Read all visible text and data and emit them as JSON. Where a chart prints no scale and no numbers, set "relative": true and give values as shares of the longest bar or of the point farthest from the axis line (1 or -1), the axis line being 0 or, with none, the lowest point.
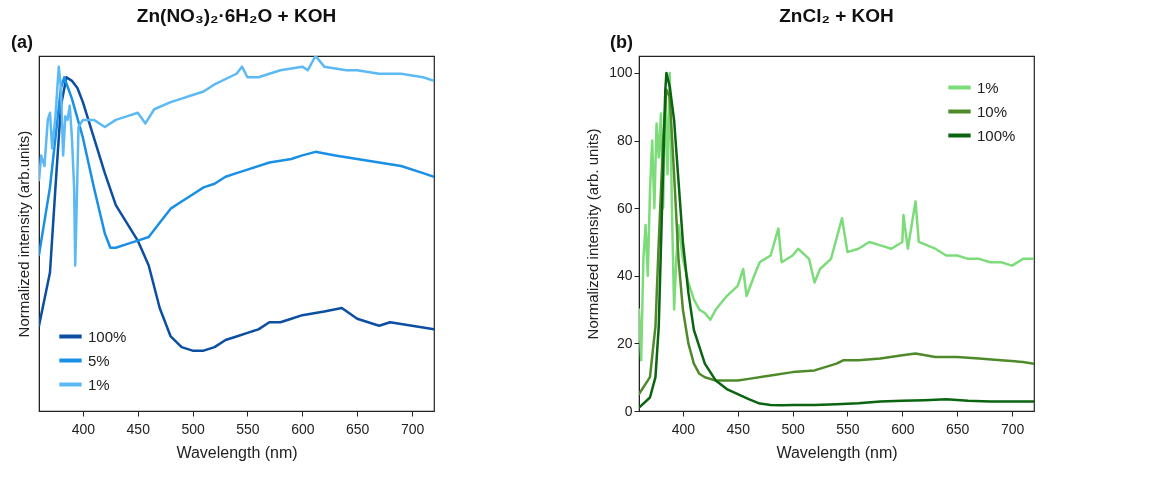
{
  "chart_data": [
    {
      "type": "line",
      "title": "Zn(NO₃)₂·6H₂O + KOH",
      "xlabel": "Wavelength (nm)",
      "ylabel": "Normalized intensity (arb.units)",
      "annotations": [
        "(a)"
      ],
      "relative": true,
      "xlim": [
        360,
        720
      ],
      "xticks": [
        400,
        450,
        500,
        550,
        600,
        650,
        700
      ],
      "grid": false,
      "legend": "bottom left",
      "line_style": "solid",
      "marker": "none",
      "series": [
        {
          "name": "100%",
          "color": "#0b4ea2",
          "x": [
            360,
            370,
            375,
            380,
            385,
            390,
            395,
            400,
            410,
            420,
            430,
            440,
            450,
            460,
            470,
            480,
            490,
            500,
            510,
            520,
            530,
            540,
            550,
            560,
            570,
            580,
            590,
            600,
            620,
            636,
            650,
            660,
            670,
            680,
            700,
            720
          ],
          "values": [
            0.24,
            0.39,
            0.63,
            0.86,
            0.94,
            0.93,
            0.91,
            0.87,
            0.77,
            0.67,
            0.58,
            0.53,
            0.48,
            0.41,
            0.29,
            0.21,
            0.18,
            0.17,
            0.17,
            0.18,
            0.2,
            0.21,
            0.22,
            0.23,
            0.25,
            0.25,
            0.26,
            0.27,
            0.28,
            0.29,
            0.26,
            0.25,
            0.24,
            0.25,
            0.24,
            0.23
          ]
        },
        {
          "name": "5%",
          "color": "#1a8fe6",
          "x": [
            360,
            370,
            375,
            380,
            383,
            390,
            400,
            410,
            420,
            425,
            430,
            440,
            450,
            460,
            470,
            480,
            490,
            500,
            510,
            520,
            530,
            540,
            550,
            570,
            590,
            600,
            612,
            630,
            650,
            670,
            690,
            710,
            720
          ],
          "values": [
            0.44,
            0.63,
            0.77,
            0.91,
            0.94,
            0.88,
            0.77,
            0.63,
            0.5,
            0.46,
            0.46,
            0.47,
            0.48,
            0.49,
            0.53,
            0.57,
            0.59,
            0.61,
            0.63,
            0.64,
            0.66,
            0.67,
            0.68,
            0.7,
            0.71,
            0.72,
            0.73,
            0.72,
            0.71,
            0.7,
            0.69,
            0.67,
            0.66
          ]
        },
        {
          "name": "1%",
          "color": "#5cb9f4",
          "x": [
            360,
            362,
            365,
            368,
            370,
            372,
            375,
            378,
            380,
            382,
            384,
            386,
            388,
            390,
            392,
            393,
            394,
            396,
            400,
            410,
            420,
            430,
            440,
            450,
            457,
            465,
            480,
            490,
            500,
            510,
            520,
            540,
            545,
            550,
            560,
            580,
            600,
            605,
            612,
            620,
            640,
            650,
            670,
            690,
            710,
            720
          ],
          "values": [
            0.65,
            0.72,
            0.69,
            0.82,
            0.84,
            0.74,
            0.83,
            0.97,
            0.91,
            0.72,
            0.83,
            0.82,
            0.86,
            0.77,
            0.63,
            0.41,
            0.53,
            0.8,
            0.82,
            0.82,
            0.8,
            0.82,
            0.83,
            0.84,
            0.81,
            0.85,
            0.87,
            0.88,
            0.89,
            0.9,
            0.92,
            0.95,
            0.97,
            0.94,
            0.94,
            0.96,
            0.97,
            0.96,
            1,
            0.97,
            0.96,
            0.96,
            0.95,
            0.95,
            0.94,
            0.93
          ]
        }
      ]
    },
    {
      "type": "line",
      "title": "ZnCl₂ + KOH",
      "xlabel": "Wavelength (nm)",
      "ylabel": "Normalized intensity (arb. units)",
      "annotations": [
        "(b)"
      ],
      "xlim": [
        360,
        720
      ],
      "xticks": [
        400,
        450,
        500,
        550,
        600,
        650,
        700
      ],
      "ylim": [
        0,
        105
      ],
      "yticks": [
        0,
        20,
        40,
        60,
        80,
        100
      ],
      "grid": false,
      "legend": "top right",
      "line_style": "solid",
      "marker": "none",
      "series": [
        {
          "name": "1%",
          "color": "#7ddc7a",
          "x": [
            360,
            362,
            364,
            366,
            368,
            370,
            372,
            374,
            376,
            378,
            380,
            382,
            384,
            386,
            388,
            390,
            392,
            394,
            396,
            400,
            405,
            410,
            415,
            420,
            425,
            430,
            440,
            450,
            455,
            458,
            465,
            470,
            480,
            487,
            490,
            500,
            505,
            515,
            520,
            525,
            535,
            545,
            550,
            560,
            570,
            580,
            590,
            600,
            601,
            605,
            612,
            615,
            630,
            640,
            650,
            660,
            670,
            680,
            690,
            700,
            710,
            720
          ],
          "values": [
            30,
            15,
            45,
            55,
            40,
            65,
            80,
            60,
            85,
            75,
            88,
            60,
            95,
            70,
            100,
            60,
            30,
            45,
            55,
            45,
            38,
            33,
            30,
            29,
            27,
            30,
            34,
            37,
            42,
            34,
            40,
            44,
            46,
            54,
            44,
            46,
            48,
            45,
            38,
            42,
            45,
            57,
            47,
            48,
            50,
            49,
            48,
            50,
            58,
            48,
            62,
            50,
            48,
            46,
            46,
            45,
            45,
            44,
            44,
            43,
            45,
            45
          ]
        },
        {
          "name": "10%",
          "color": "#4f8a2a",
          "x": [
            360,
            370,
            375,
            378,
            382,
            385,
            388,
            392,
            396,
            400,
            405,
            410,
            415,
            420,
            430,
            440,
            450,
            460,
            480,
            500,
            520,
            540,
            546,
            560,
            580,
            600,
            612,
            630,
            650,
            670,
            690,
            710,
            720
          ],
          "values": [
            5,
            10,
            25,
            50,
            80,
            95,
            93,
            70,
            45,
            30,
            20,
            14,
            11,
            10,
            9,
            9,
            9,
            9.5,
            10.5,
            11.5,
            12,
            14,
            15,
            15,
            15.5,
            16.5,
            17,
            16,
            16,
            15.5,
            15,
            14.5,
            14
          ]
        },
        {
          "name": "100%",
          "color": "#0a6410",
          "x": [
            360,
            370,
            375,
            378,
            381,
            384,
            385,
            388,
            392,
            396,
            400,
            405,
            410,
            420,
            430,
            440,
            450,
            460,
            470,
            480,
            490,
            500,
            520,
            540,
            560,
            580,
            600,
            620,
            640,
            660,
            680,
            700,
            720
          ],
          "values": [
            1,
            4,
            10,
            25,
            60,
            95,
            100,
            96,
            86,
            68,
            50,
            35,
            24,
            14,
            9,
            6.5,
            5,
            3.5,
            2.2,
            1.8,
            1.7,
            1.8,
            1.8,
            2,
            2.3,
            2.8,
            3,
            3.2,
            3.5,
            3,
            2.8,
            2.8,
            2.8
          ]
        }
      ]
    }
  ]
}
